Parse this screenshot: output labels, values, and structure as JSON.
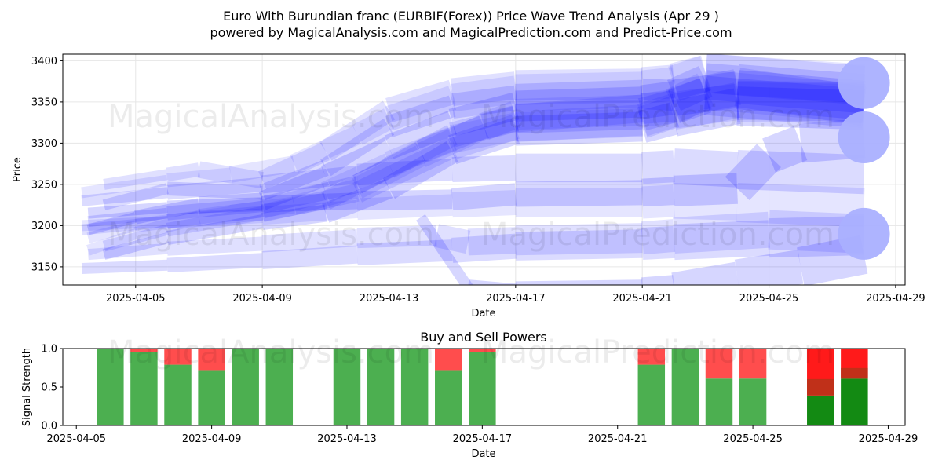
{
  "figure": {
    "title_line1": "Euro With Burundian franc (EURBIF(Forex)) Price Wave Trend Analysis (Apr 29 )",
    "title_line2": "powered by MagicalAnalysis.com and MagicalPrediction.com and Predict-Price.com",
    "watermarks": [
      "MagicalAnalysis.com",
      "MagicalPrediction.com"
    ]
  },
  "chart_data": [
    {
      "type": "line",
      "name": "price-wave-trend",
      "xlabel": "Date",
      "ylabel": "Price",
      "xlim": [
        "2025-04-02.7",
        "2025-04-29.3"
      ],
      "ylim": [
        3128,
        3408
      ],
      "yticks": [
        3150,
        3200,
        3250,
        3300,
        3350,
        3400
      ],
      "xticks": [
        "2025-04-05",
        "2025-04-09",
        "2025-04-13",
        "2025-04-17",
        "2025-04-21",
        "2025-04-25",
        "2025-04-29"
      ],
      "grid": true,
      "color": "#0000ff",
      "series": [
        {
          "name": "wave-high-1",
          "x": [
            3.3,
            6,
            8,
            10,
            12,
            13,
            15,
            17,
            21,
            22,
            23,
            28
          ],
          "y": [
            3240,
            3255,
            3262,
            3275,
            3310,
            3330,
            3355,
            3365,
            3368,
            3372,
            3385,
            3372
          ]
        },
        {
          "name": "wave-high-2",
          "x": [
            4,
            6,
            7,
            9,
            11,
            13,
            15,
            17,
            21,
            22,
            23,
            28
          ],
          "y": [
            3250,
            3262,
            3268,
            3255,
            3290,
            3340,
            3362,
            3370,
            3372,
            3375,
            3385,
            3370
          ]
        },
        {
          "name": "wave-high-3",
          "x": [
            4,
            6,
            9,
            11,
            13,
            15,
            17,
            21,
            22,
            23,
            24,
            28
          ],
          "y": [
            3225,
            3245,
            3240,
            3270,
            3320,
            3345,
            3355,
            3360,
            3358,
            3375,
            3372,
            3360
          ]
        },
        {
          "name": "wave-high-4",
          "x": [
            3.5,
            5,
            7,
            9,
            11,
            13,
            15,
            17,
            21,
            22,
            24,
            28
          ],
          "y": [
            3195,
            3210,
            3225,
            3230,
            3260,
            3295,
            3325,
            3345,
            3350,
            3355,
            3365,
            3352
          ]
        },
        {
          "name": "wave-high-5",
          "x": [
            3.5,
            5,
            8,
            10,
            12,
            14,
            16,
            17,
            21,
            22,
            23,
            28
          ],
          "y": [
            3185,
            3200,
            3215,
            3225,
            3245,
            3285,
            3320,
            3335,
            3340,
            3345,
            3365,
            3348
          ]
        },
        {
          "name": "wave-high-6",
          "x": [
            4,
            6,
            9,
            11,
            13,
            15,
            17,
            21,
            22,
            23,
            24,
            28
          ],
          "y": [
            3175,
            3195,
            3215,
            3230,
            3270,
            3310,
            3330,
            3342,
            3345,
            3360,
            3368,
            3345
          ]
        },
        {
          "name": "wave-high-7",
          "x": [
            3.5,
            6,
            9,
            12,
            14,
            16,
            17,
            21,
            22,
            23,
            28
          ],
          "y": [
            3205,
            3215,
            3225,
            3250,
            3290,
            3320,
            3330,
            3335,
            3345,
            3358,
            3342
          ]
        },
        {
          "name": "wave-high-8",
          "x": [
            4,
            6,
            9,
            11,
            13,
            15,
            17,
            21,
            22,
            24,
            28
          ],
          "y": [
            3165,
            3185,
            3205,
            3215,
            3245,
            3290,
            3315,
            3320,
            3330,
            3345,
            3340
          ]
        },
        {
          "name": "wave-high-9",
          "x": [
            3.5,
            5,
            7,
            9,
            11,
            13,
            15,
            17,
            21,
            22,
            24,
            28
          ],
          "y": [
            3170,
            3190,
            3210,
            3220,
            3240,
            3275,
            3305,
            3320,
            3328,
            3340,
            3350,
            3348
          ]
        },
        {
          "name": "wave-high-10",
          "x": [
            3.3,
            6,
            9,
            12,
            15,
            17,
            21,
            22,
            24,
            28
          ],
          "y": [
            3195,
            3205,
            3215,
            3240,
            3295,
            3320,
            3325,
            3338,
            3352,
            3350
          ]
        },
        {
          "name": "wave-mid-1",
          "x": [
            3.3,
            6,
            9,
            12,
            15,
            17,
            21,
            22,
            24,
            28
          ],
          "y": [
            3230,
            3240,
            3250,
            3262,
            3268,
            3270,
            3270,
            3272,
            3268,
            3262
          ]
        },
        {
          "name": "wave-mid-2",
          "x": [
            3.5,
            6,
            9,
            12,
            15,
            17,
            21,
            22,
            24,
            25,
            26,
            28
          ],
          "y": [
            3215,
            3222,
            3226,
            3230,
            3232,
            3238,
            3240,
            3242,
            3245,
            3285,
            3300,
            3306
          ]
        },
        {
          "name": "wave-mid-3",
          "x": [
            3.3,
            6,
            9,
            12,
            15,
            17,
            21,
            22,
            24,
            28
          ],
          "y": [
            3200,
            3205,
            3212,
            3220,
            3225,
            3228,
            3228,
            3230,
            3228,
            3222
          ]
        },
        {
          "name": "wave-low-1",
          "x": [
            3.5,
            6,
            9,
            12,
            14.5,
            15.5,
            17,
            21,
            22,
            25,
            28
          ],
          "y": [
            3165,
            3172,
            3178,
            3185,
            3188,
            3180,
            3182,
            3185,
            3188,
            3195,
            3190
          ]
        },
        {
          "name": "wave-low-2",
          "x": [
            3.3,
            6,
            9,
            12,
            15,
            17,
            21,
            22,
            25,
            28
          ],
          "y": [
            3148,
            3152,
            3158,
            3165,
            3170,
            3175,
            3178,
            3180,
            3185,
            3188
          ]
        },
        {
          "name": "wave-low-3",
          "x": [
            14,
            15.5,
            17,
            21,
            22,
            24,
            26,
            28
          ],
          "y": [
            3210,
            3125,
            3120,
            3122,
            3125,
            3138,
            3150,
            3165
          ]
        }
      ],
      "endpoints": [
        {
          "label": "end-high",
          "x": 28,
          "y": 3373
        },
        {
          "label": "end-mid",
          "x": 28,
          "y": 3307
        },
        {
          "label": "end-low",
          "x": 28,
          "y": 3190
        }
      ]
    },
    {
      "type": "bar",
      "name": "buy-sell-powers",
      "title": "Buy and Sell Powers",
      "xlabel": "Date",
      "ylabel": "Signal Strength",
      "xlim": [
        "2025-04-04.6",
        "2025-04-29.5"
      ],
      "ylim": [
        0,
        1.0
      ],
      "yticks": [
        0.0,
        0.5,
        1.0
      ],
      "xticks": [
        "2025-04-05",
        "2025-04-09",
        "2025-04-13",
        "2025-04-17",
        "2025-04-21",
        "2025-04-25",
        "2025-04-29"
      ],
      "buy_color": "#4caf50",
      "sell_color": "#ff4d4d",
      "categories": [
        "2025-04-06",
        "2025-04-07",
        "2025-04-08",
        "2025-04-09",
        "2025-04-10",
        "2025-04-11",
        "2025-04-13",
        "2025-04-14",
        "2025-04-15",
        "2025-04-16",
        "2025-04-17",
        "2025-04-22",
        "2025-04-23",
        "2025-04-24",
        "2025-04-25",
        "2025-04-27",
        "2025-04-28"
      ],
      "series": [
        {
          "name": "buy",
          "values": [
            1.0,
            0.95,
            0.79,
            0.72,
            1.0,
            1.0,
            1.0,
            1.0,
            1.0,
            0.72,
            0.95,
            0.79,
            1.0,
            0.61,
            0.61,
            0.39,
            0.61
          ]
        },
        {
          "name": "sell",
          "values": [
            0.0,
            0.05,
            0.21,
            0.28,
            0.0,
            0.0,
            0.0,
            0.0,
            0.0,
            0.28,
            0.05,
            0.21,
            0.0,
            0.39,
            0.39,
            0.61,
            0.39
          ]
        }
      ]
    }
  ]
}
